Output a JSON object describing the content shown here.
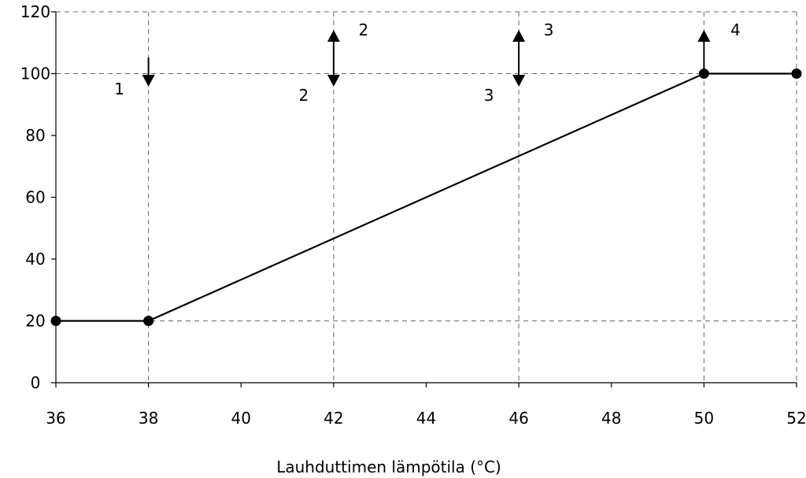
{
  "chart_data": {
    "type": "line",
    "title": "",
    "xlabel": "Lauhduttimen lämpötila (°C)",
    "ylabel": "",
    "xlim": [
      36,
      52
    ],
    "ylim": [
      0,
      120
    ],
    "x_ticks": [
      36,
      38,
      40,
      42,
      44,
      46,
      48,
      50,
      52
    ],
    "y_ticks": [
      0,
      20,
      40,
      60,
      80,
      100,
      120
    ],
    "grid_x": [
      38,
      42,
      46,
      50,
      52
    ],
    "grid_y": [
      20,
      100,
      120
    ],
    "grid": true,
    "series": [
      {
        "x": [
          36,
          38,
          50,
          52
        ],
        "y": [
          20,
          20,
          100,
          100
        ]
      }
    ],
    "annotations": [
      {
        "x": 38,
        "label": "1",
        "direction": "down"
      },
      {
        "x": 42,
        "label": "2",
        "direction": "both"
      },
      {
        "x": 46,
        "label": "3",
        "direction": "both"
      },
      {
        "x": 50,
        "label": "4",
        "direction": "up"
      }
    ]
  }
}
